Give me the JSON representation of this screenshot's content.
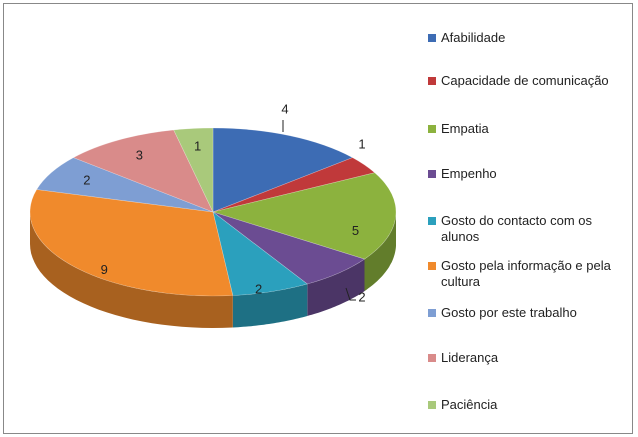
{
  "chart_data": {
    "type": "pie3d",
    "categories": [
      "Afabilidade",
      "Capacidade de comunicação",
      "Empatia",
      "Empenho",
      "Gosto do contacto com os alunos",
      "Gosto pela informação e pela cultura",
      "Gosto por este trabalho",
      "Liderança",
      "Paciência"
    ],
    "values": [
      4,
      1,
      5,
      2,
      2,
      9,
      2,
      3,
      1
    ],
    "colors": [
      "#3d6cb4",
      "#c0393a",
      "#8cb23e",
      "#6b4c92",
      "#2ba0bd",
      "#f08a2c",
      "#7e9ed3",
      "#d98b8a",
      "#a9c97b"
    ],
    "legend": "right"
  }
}
